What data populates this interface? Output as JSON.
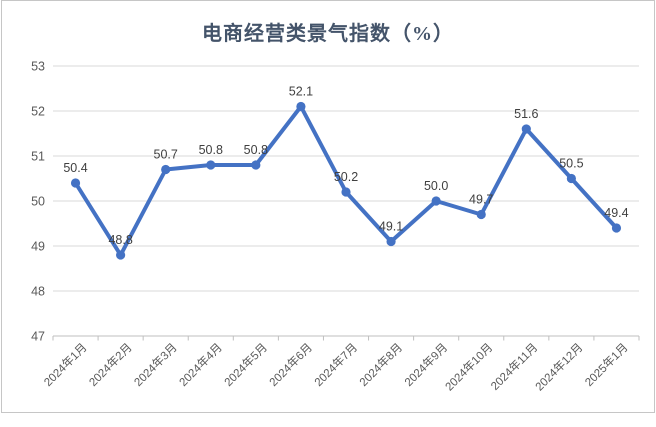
{
  "chart_data": {
    "type": "line",
    "title": "电商经营类景气指数（%）",
    "categories": [
      "2024年1月",
      "2024年2月",
      "2024年3月",
      "2024年4月",
      "2024年5月",
      "2024年6月",
      "2024年7月",
      "2024年8月",
      "2024年9月",
      "2024年10月",
      "2024年11月",
      "2024年12月",
      "2025年1月"
    ],
    "values": [
      50.4,
      48.8,
      50.7,
      50.8,
      50.8,
      52.1,
      50.2,
      49.1,
      50.0,
      49.7,
      51.6,
      50.5,
      49.4
    ],
    "data_labels": [
      "50.4",
      "48.8",
      "50.7",
      "50.8",
      "50.8",
      "52.1",
      "50.2",
      "49.1",
      "50.0",
      "49.7",
      "51.6",
      "50.5",
      "49.4"
    ],
    "xlabel": "",
    "ylabel": "",
    "ylim": [
      47,
      53
    ],
    "yticks": [
      "47",
      "48",
      "49",
      "50",
      "51",
      "52",
      "53"
    ],
    "grid": true,
    "legend_position": "none",
    "colors": {
      "line": "#4472C4",
      "marker": "#4472C4",
      "title": "#44546A",
      "data_label": "#404040",
      "axis_text": "#595959",
      "gridline": "#D9D9D9",
      "axis_line": "#BFBFBF",
      "frame_border": "#C6C6C6"
    }
  }
}
